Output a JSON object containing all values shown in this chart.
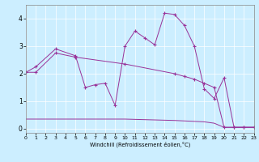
{
  "bg_color": "#cceeff",
  "line_color": "#993399",
  "xlabel": "Windchill (Refroidissement éolien,°C)",
  "xlim": [
    0,
    23
  ],
  "ylim": [
    -0.15,
    4.5
  ],
  "yticks": [
    0,
    1,
    2,
    3,
    4
  ],
  "xticks": [
    0,
    1,
    2,
    3,
    4,
    5,
    6,
    7,
    8,
    9,
    10,
    11,
    12,
    13,
    14,
    15,
    16,
    17,
    18,
    19,
    20,
    21,
    22,
    23
  ],
  "line1_x": [
    0,
    1,
    3,
    5,
    6,
    7,
    8,
    9,
    10,
    11,
    12,
    13,
    14,
    15,
    16,
    17,
    18,
    19,
    20,
    21,
    22,
    23
  ],
  "line1_y": [
    2.05,
    2.25,
    2.9,
    2.65,
    1.5,
    1.6,
    1.65,
    0.85,
    3.0,
    3.55,
    3.3,
    3.05,
    4.2,
    4.15,
    3.75,
    3.0,
    1.45,
    1.1,
    1.85,
    0.05,
    0.05,
    0.05
  ],
  "line2_x": [
    0,
    1,
    3,
    5,
    10,
    15,
    16,
    17,
    18,
    19,
    20,
    21,
    22,
    23
  ],
  "line2_y": [
    2.05,
    2.05,
    2.75,
    2.6,
    2.35,
    2.0,
    1.9,
    1.8,
    1.65,
    1.5,
    0.05,
    0.05,
    0.05,
    0.05
  ],
  "line3_x": [
    0,
    1,
    3,
    5,
    10,
    15,
    18,
    19,
    20,
    21,
    22,
    23
  ],
  "line3_y": [
    0.35,
    0.35,
    0.35,
    0.35,
    0.35,
    0.3,
    0.25,
    0.2,
    0.05,
    0.05,
    0.05,
    0.05
  ]
}
